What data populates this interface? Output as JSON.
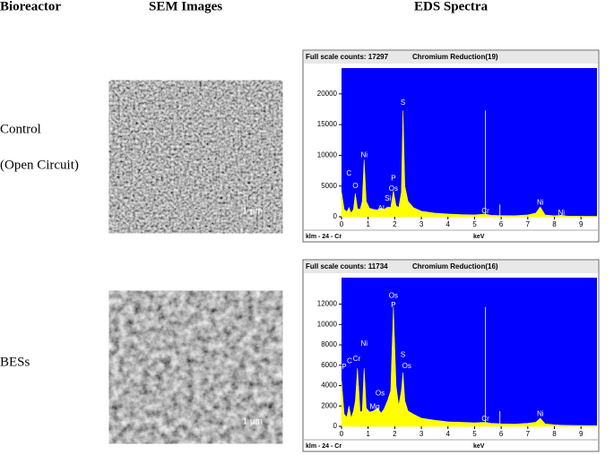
{
  "header": {
    "bioreactor": "Bioreactor",
    "sem": "SEM Images",
    "eds": "EDS Spectra"
  },
  "rows": [
    {
      "label_lines": [
        "Control",
        "(Open Circuit)"
      ],
      "sem": {
        "tag": "Grey",
        "scale_min": 34,
        "scale_max": 123,
        "scalebar": "1 µm"
      },
      "spectrum": {
        "type": "area",
        "full_scale": "Full scale counts: 17297",
        "title": "Chromium Reduction(19)",
        "footer": "klm - 24 - Cr",
        "xlabel": "keV",
        "color": "#ffff00",
        "background": "#0000ff",
        "xlim": [
          0,
          9.6
        ],
        "xticks": [
          0,
          1,
          2,
          3,
          4,
          5,
          6,
          7,
          8,
          9
        ],
        "ylim": [
          0,
          24200
        ],
        "yticks": [
          0,
          5000,
          10000,
          15000,
          20000
        ],
        "x": [
          0,
          0.1,
          0.2,
          0.28,
          0.36,
          0.45,
          0.52,
          0.6,
          0.7,
          0.78,
          0.85,
          0.93,
          1.05,
          1.2,
          1.35,
          1.49,
          1.6,
          1.74,
          1.85,
          1.95,
          2.05,
          2.15,
          2.25,
          2.31,
          2.38,
          2.5,
          2.7,
          3.0,
          3.5,
          4.0,
          4.5,
          5.0,
          5.41,
          5.6,
          6.0,
          6.5,
          7.0,
          7.3,
          7.47,
          7.65,
          8.0,
          8.26,
          8.5,
          9.0,
          9.6
        ],
        "values": [
          4000,
          1200,
          800,
          1500,
          600,
          1200,
          3800,
          1300,
          1200,
          2500,
          9300,
          2500,
          1400,
          1200,
          1100,
          1400,
          1200,
          1600,
          1500,
          4200,
          1800,
          1500,
          4000,
          17297,
          5000,
          2500,
          1500,
          900,
          600,
          450,
          350,
          300,
          450,
          250,
          200,
          180,
          300,
          600,
          1600,
          300,
          150,
          250,
          100,
          80,
          60
        ],
        "klm_lines": {
          "x": [
            5.41,
            5.95
          ],
          "counts": [
            17297,
            2000
          ]
        },
        "peak_labels": [
          {
            "label": "C",
            "x": 0.28,
            "y": 7000
          },
          {
            "label": "O",
            "x": 0.52,
            "y": 5000
          },
          {
            "label": "Ni",
            "x": 0.85,
            "y": 10000
          },
          {
            "label": "S",
            "x": 2.31,
            "y": 18500
          },
          {
            "label": "P",
            "x": 1.95,
            "y": 6200
          },
          {
            "label": "Os",
            "x": 1.95,
            "y": 4500
          },
          {
            "label": "Si",
            "x": 1.74,
            "y": 2900
          },
          {
            "label": "Al",
            "x": 1.49,
            "y": 1300
          },
          {
            "label": "Cr",
            "x": 5.41,
            "y": 900
          },
          {
            "label": "Ni",
            "x": 7.47,
            "y": 2300
          },
          {
            "label": "Ni",
            "x": 8.26,
            "y": 600
          }
        ]
      }
    },
    {
      "label_lines": [
        "BESs"
      ],
      "sem": {
        "tag": "Grey",
        "scale_min": 57,
        "scale_max": 186,
        "scalebar": "1 µm"
      },
      "spectrum": {
        "type": "area",
        "full_scale": "Full scale counts: 11734",
        "title": "Chromium Reduction(16)",
        "footer": "klm - 24 - Cr",
        "xlabel": "keV",
        "color": "#ffff00",
        "background": "#0000ff",
        "xlim": [
          0,
          9.6
        ],
        "xticks": [
          0,
          1,
          2,
          3,
          4,
          5,
          6,
          7,
          8,
          9
        ],
        "ylim": [
          0,
          14600
        ],
        "yticks": [
          0,
          2000,
          4000,
          6000,
          8000,
          10000,
          12000
        ],
        "x": [
          0,
          0.1,
          0.2,
          0.28,
          0.36,
          0.45,
          0.52,
          0.6,
          0.7,
          0.78,
          0.85,
          0.93,
          1.05,
          1.2,
          1.35,
          1.49,
          1.6,
          1.74,
          1.85,
          1.95,
          2.05,
          2.15,
          2.25,
          2.31,
          2.38,
          2.5,
          2.7,
          3.0,
          3.5,
          4.0,
          4.5,
          5.0,
          5.41,
          5.6,
          6.0,
          6.5,
          7.0,
          7.3,
          7.47,
          7.65,
          8.0,
          8.26,
          8.5,
          9.0,
          9.6
        ],
        "values": [
          4500,
          1200,
          900,
          2000,
          800,
          1500,
          2500,
          5700,
          1400,
          1500,
          5700,
          1800,
          1400,
          1500,
          1800,
          1300,
          1700,
          2600,
          3500,
          11734,
          4000,
          2000,
          3500,
          5300,
          2500,
          1500,
          1200,
          800,
          600,
          450,
          400,
          350,
          400,
          300,
          250,
          220,
          300,
          400,
          800,
          250,
          150,
          120,
          100,
          80,
          60
        ],
        "klm_lines": {
          "x": [
            5.41,
            5.95
          ],
          "counts": [
            11734,
            1500
          ]
        },
        "peak_labels": [
          {
            "label": "P",
            "x": 0.1,
            "y": 5800
          },
          {
            "label": "C",
            "x": 0.3,
            "y": 6400
          },
          {
            "label": "Cr",
            "x": 0.57,
            "y": 6600
          },
          {
            "label": "Ni",
            "x": 0.85,
            "y": 8100
          },
          {
            "label": "Os",
            "x": 1.45,
            "y": 3200
          },
          {
            "label": "Mg",
            "x": 1.25,
            "y": 1900
          },
          {
            "label": "Os",
            "x": 1.95,
            "y": 12800
          },
          {
            "label": "P",
            "x": 1.95,
            "y": 11900
          },
          {
            "label": "S",
            "x": 2.31,
            "y": 7000
          },
          {
            "label": "Os",
            "x": 2.45,
            "y": 5900
          },
          {
            "label": "Cr",
            "x": 5.41,
            "y": 700
          },
          {
            "label": "Ni",
            "x": 7.47,
            "y": 1200
          }
        ]
      }
    }
  ]
}
